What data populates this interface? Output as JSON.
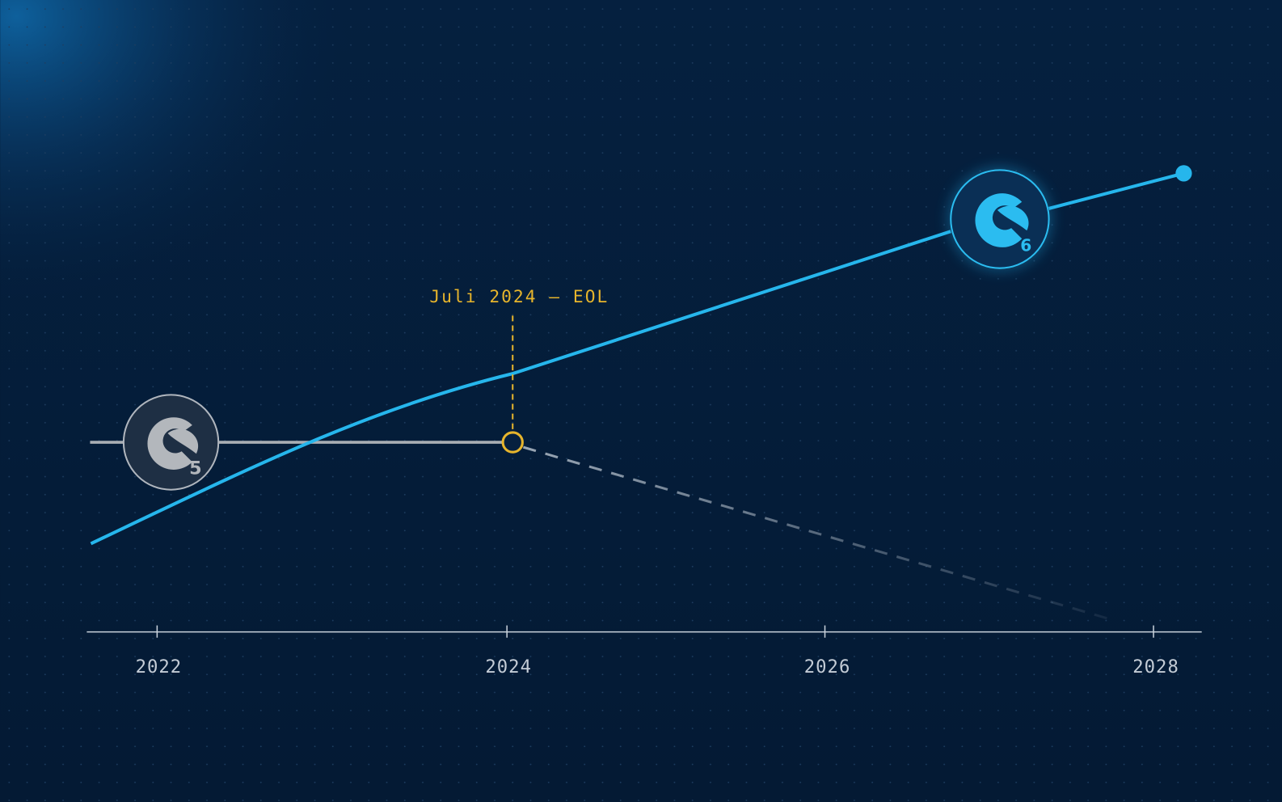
{
  "annotation": {
    "label": "Juli 2024 — EOL"
  },
  "axis": {
    "ticks": [
      "2022",
      "2024",
      "2026",
      "2028"
    ]
  },
  "badges": [
    {
      "version": "5"
    },
    {
      "version": "6"
    }
  ]
}
